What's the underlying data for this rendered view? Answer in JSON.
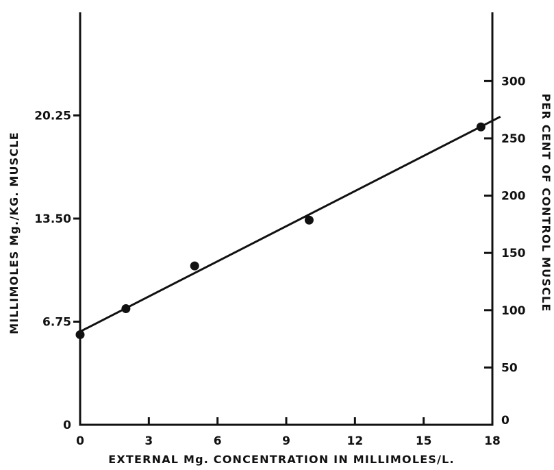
{
  "chart_data": {
    "type": "scatter",
    "xlabel": "EXTERNAL  Mg. CONCENTRATION  IN  MILLIMOLES/L.",
    "ylabel_left": "MILLIMOLES  Mg./KG.  MUSCLE",
    "ylabel_right": "PER CENT OF CONTROL MUSCLE",
    "xlim": [
      0,
      18
    ],
    "ylim_left": [
      0,
      27
    ],
    "ylim_right": [
      0,
      360
    ],
    "x_ticks": [
      0,
      3,
      6,
      9,
      12,
      15,
      18
    ],
    "x_tick_labels": [
      "0",
      "3",
      "6",
      "9",
      "12",
      "15",
      "18"
    ],
    "y_left_ticks": [
      0,
      6.75,
      13.5,
      20.25
    ],
    "y_left_tick_labels": [
      "0",
      "6.75",
      "13.50",
      "20.25"
    ],
    "y_right_ticks": [
      0,
      50,
      100,
      150,
      200,
      250,
      300
    ],
    "y_right_tick_labels": [
      "0",
      "50",
      "100",
      "150",
      "200",
      "250",
      "300"
    ],
    "grid": false,
    "series": [
      {
        "x": [
          0,
          2,
          5,
          10,
          17.5
        ],
        "y": [
          5.9,
          7.6,
          10.4,
          13.4,
          19.5
        ]
      }
    ],
    "fit_line": {
      "x": [
        0,
        18
      ],
      "y": [
        6.1,
        19.9
      ]
    }
  }
}
